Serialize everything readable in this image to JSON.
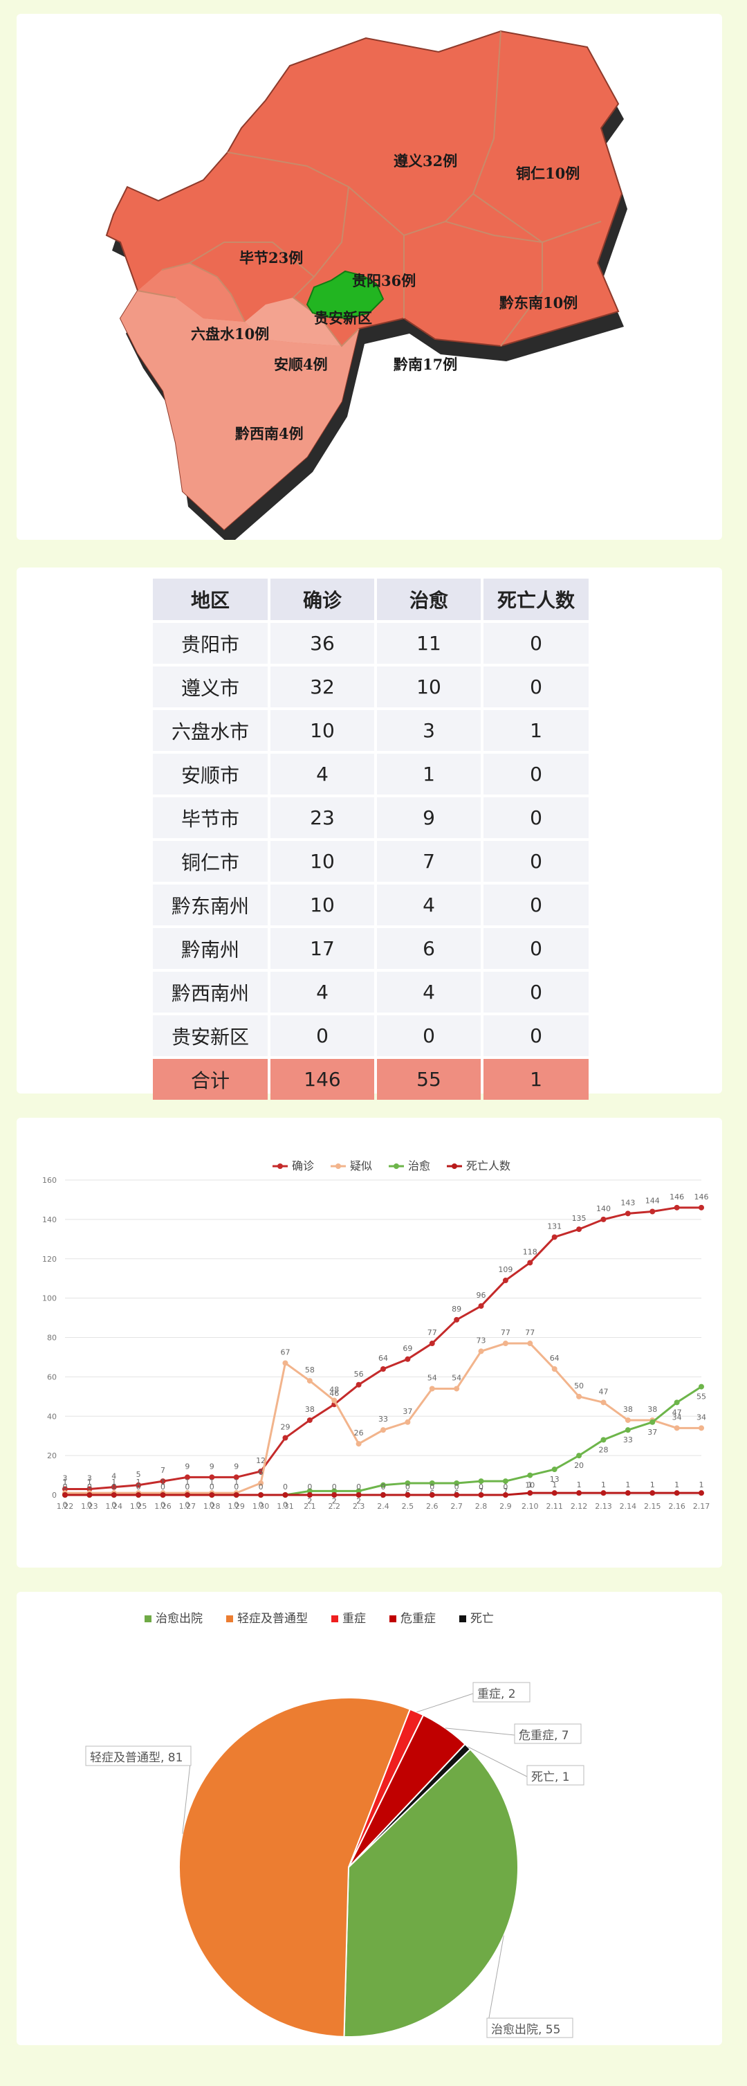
{
  "map": {
    "regions": [
      {
        "id": "zunyi",
        "label": "遵义32例"
      },
      {
        "id": "tongren",
        "label": "铜仁10例"
      },
      {
        "id": "bijie",
        "label": "毕节23例"
      },
      {
        "id": "guiyang",
        "label": "贵阳36例"
      },
      {
        "id": "guian",
        "label": "贵安新区"
      },
      {
        "id": "liupanshui",
        "label": "六盘水10例"
      },
      {
        "id": "anshun",
        "label": "安顺4例"
      },
      {
        "id": "qiannan",
        "label": "黔南17例"
      },
      {
        "id": "qiandongnan",
        "label": "黔东南10例"
      },
      {
        "id": "qianxinan",
        "label": "黔西南4例"
      }
    ],
    "colors": {
      "region": "#ec6a52",
      "region_light": "#f08f7c",
      "highlight": "#22b521",
      "border": "#c98a6a"
    }
  },
  "table": {
    "headers": [
      "地区",
      "确诊",
      "治愈",
      "死亡人数"
    ],
    "rows": [
      [
        "贵阳市",
        "36",
        "11",
        "0"
      ],
      [
        "遵义市",
        "32",
        "10",
        "0"
      ],
      [
        "六盘水市",
        "10",
        "3",
        "1"
      ],
      [
        "安顺市",
        "4",
        "1",
        "0"
      ],
      [
        "毕节市",
        "23",
        "9",
        "0"
      ],
      [
        "铜仁市",
        "10",
        "7",
        "0"
      ],
      [
        "黔东南州",
        "10",
        "4",
        "0"
      ],
      [
        "黔南州",
        "17",
        "6",
        "0"
      ],
      [
        "黔西南州",
        "4",
        "4",
        "0"
      ],
      [
        "贵安新区",
        "0",
        "0",
        "0"
      ]
    ],
    "total": [
      "合计",
      "146",
      "55",
      "1"
    ]
  },
  "chart_data": [
    {
      "type": "line",
      "x": [
        "1.22",
        "1.23",
        "1.24",
        "1.25",
        "1.26",
        "1.27",
        "1.28",
        "1.29",
        "1.30",
        "1.31",
        "2.1",
        "2.2",
        "2.3",
        "2.4",
        "2.5",
        "2.6",
        "2.7",
        "2.8",
        "2.9",
        "2.10",
        "2.11",
        "2.12",
        "2.13",
        "2.14",
        "2.15",
        "2.16",
        "2.17"
      ],
      "ylim": [
        0,
        160
      ],
      "yticks": [
        0,
        20,
        40,
        60,
        80,
        100,
        120,
        140,
        160
      ],
      "grid": true,
      "legend_position": "top",
      "series": [
        {
          "name": "确诊",
          "color": "#c42a2a",
          "values": [
            3,
            3,
            4,
            5,
            7,
            9,
            9,
            9,
            12,
            29,
            38,
            46,
            56,
            64,
            69,
            77,
            89,
            96,
            109,
            118,
            131,
            135,
            140,
            143,
            144,
            146,
            146
          ]
        },
        {
          "name": "疑似",
          "color": "#f2b48c",
          "values": [
            1,
            1,
            1,
            1,
            1,
            1,
            1,
            1,
            6,
            67,
            58,
            48,
            26,
            33,
            37,
            54,
            54,
            73,
            77,
            77,
            64,
            50,
            47,
            38,
            38,
            34,
            34
          ]
        },
        {
          "name": "治愈",
          "color": "#6db54a",
          "values": [
            0,
            0,
            0,
            0,
            0,
            0,
            0,
            0,
            0,
            0,
            2,
            2,
            2,
            5,
            6,
            6,
            6,
            7,
            7,
            10,
            13,
            20,
            28,
            33,
            37,
            47,
            55
          ]
        },
        {
          "name": "死亡人数",
          "color": "#b81a1a",
          "values": [
            0,
            0,
            0,
            0,
            0,
            0,
            0,
            0,
            0,
            0,
            0,
            0,
            0,
            0,
            0,
            0,
            0,
            0,
            0,
            1,
            1,
            1,
            1,
            1,
            1,
            1,
            1
          ]
        }
      ]
    },
    {
      "type": "pie",
      "legend_position": "top",
      "slices": [
        {
          "name": "治愈出院",
          "value": 55,
          "color": "#6faa46",
          "label": "治愈出院, 55"
        },
        {
          "name": "轻症及普通型",
          "value": 81,
          "color": "#ec7d31",
          "label": "轻症及普通型, 81"
        },
        {
          "name": "重症",
          "value": 2,
          "color": "#ef1f1f",
          "label": "重症, 2"
        },
        {
          "name": "危重症",
          "value": 7,
          "color": "#c00000",
          "label": "危重症, 7"
        },
        {
          "name": "死亡",
          "value": 1,
          "color": "#111111",
          "label": "死亡, 1"
        }
      ]
    }
  ]
}
